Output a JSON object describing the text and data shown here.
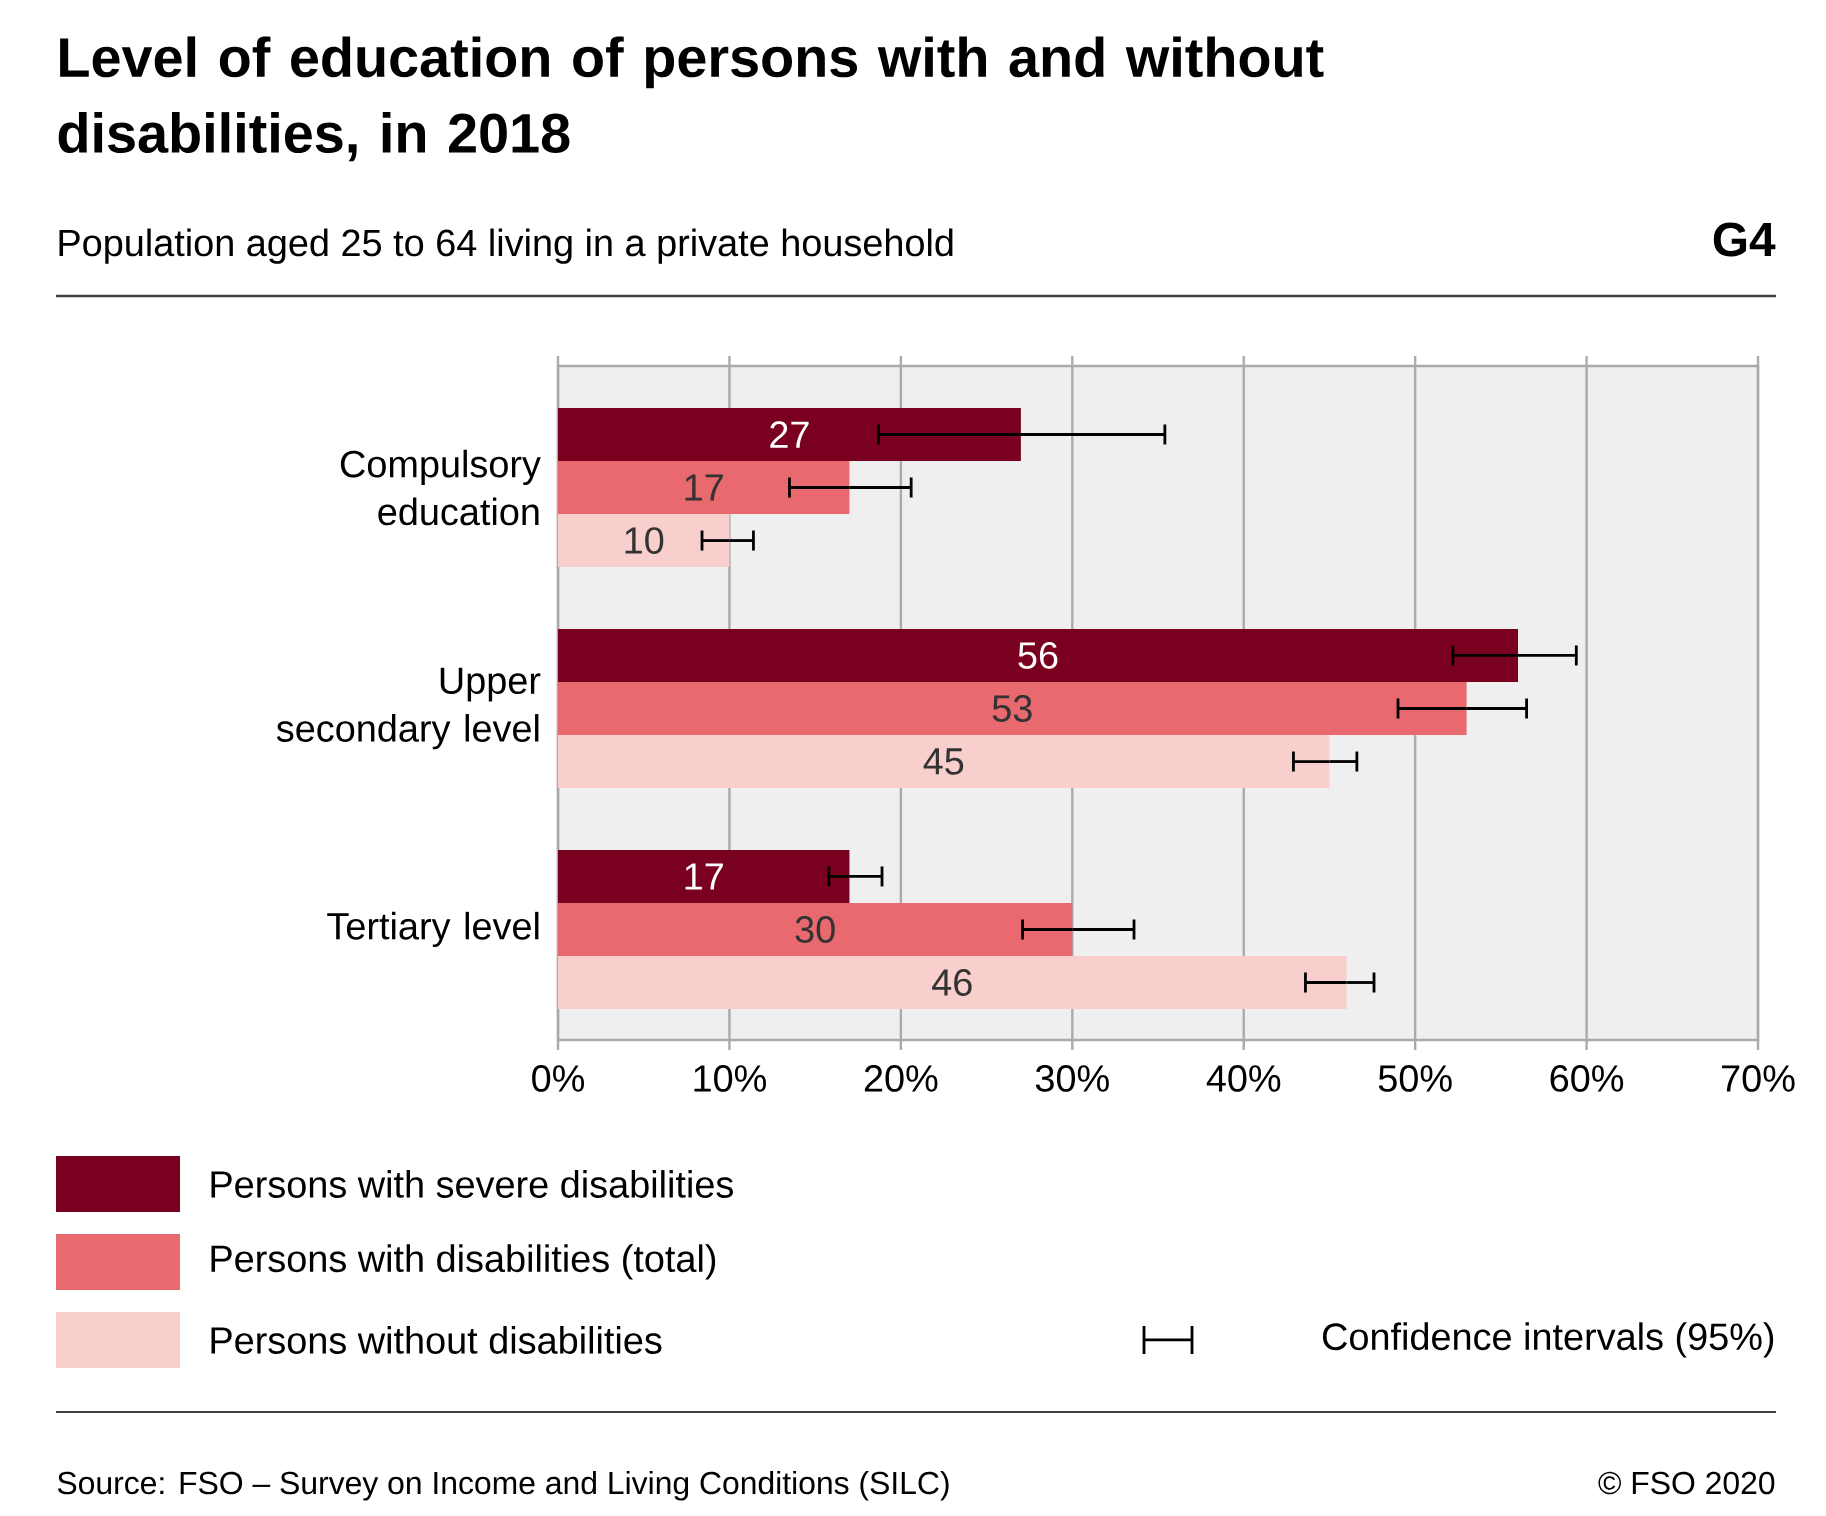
{
  "chart_data": {
    "type": "bar",
    "orientation": "horizontal",
    "title": "Level of education of persons with and without disabilities, in 2018",
    "subtitle": "Population aged 25 to 64 living in a private household",
    "categories": [
      "Compulsory education",
      "Upper secondary level",
      "Tertiary level"
    ],
    "series": [
      {
        "name": "Persons with severe disabilities",
        "color": "#7a0020",
        "values": [
          27,
          56,
          17
        ],
        "errors": [
          [
            18.7,
            35.4
          ],
          [
            52.2,
            59.4
          ],
          [
            15.8,
            18.9
          ]
        ]
      },
      {
        "name": "Persons with disabilities (total)",
        "color": "#e8696e",
        "values": [
          17,
          53,
          30
        ],
        "errors": [
          [
            13.5,
            20.6
          ],
          [
            49.0,
            56.5
          ],
          [
            27.1,
            33.6
          ]
        ]
      },
      {
        "name": "Persons without disabilities",
        "color": "#f8cfcc",
        "values": [
          10,
          45,
          46
        ],
        "errors": [
          [
            8.4,
            11.4
          ],
          [
            42.9,
            46.6
          ],
          [
            43.6,
            47.6
          ]
        ]
      }
    ],
    "xlim": [
      0,
      70
    ],
    "xticks": [
      {
        "value": 0,
        "label": "0%"
      },
      {
        "value": 10,
        "label": "10%"
      },
      {
        "value": 20,
        "label": "20%"
      },
      {
        "value": 30,
        "label": "30%"
      },
      {
        "value": 40,
        "label": "40%"
      },
      {
        "value": 50,
        "label": "50%"
      },
      {
        "value": 60,
        "label": "60%"
      },
      {
        "value": 70,
        "label": "70%"
      }
    ],
    "grid": "x",
    "legend": "bottom",
    "data_labels": true,
    "annotations": [
      "G4",
      "Confidence intervals (95%)",
      "Source: FSO –  Survey on Income and Living Conditions (SILC)",
      "© FSO 2020"
    ]
  }
}
